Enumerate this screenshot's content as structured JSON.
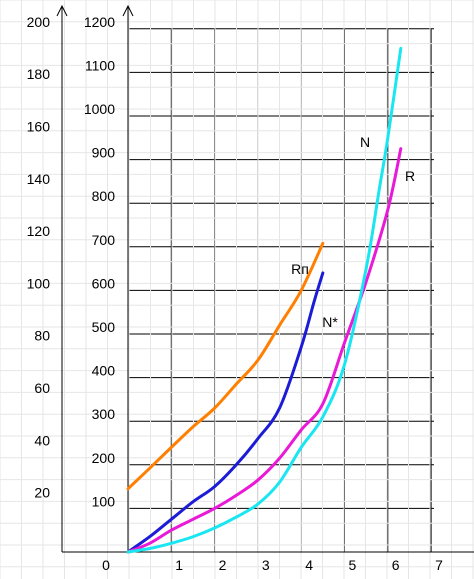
{
  "chart_data": {
    "type": "line",
    "title": "",
    "xlabel": "",
    "ylabel": "",
    "x_ticks": [
      "0",
      "1",
      "2",
      "3",
      "4",
      "5",
      "6",
      "7"
    ],
    "y_left_ticks": [
      "20",
      "40",
      "60",
      "80",
      "100",
      "120",
      "140",
      "160",
      "180",
      "200"
    ],
    "y_inner_ticks": [
      "100",
      "200",
      "300",
      "400",
      "500",
      "600",
      "700",
      "800",
      "900",
      "1000",
      "1100",
      "1200"
    ],
    "xlim": [
      0,
      7
    ],
    "ylim": [
      0,
      1200
    ],
    "grid": true,
    "series": [
      {
        "name": "Rп",
        "color": "#ff7f00",
        "x": [
          0,
          0.5,
          1,
          1.5,
          2,
          2.5,
          3,
          3.5,
          4,
          4.5
        ],
        "y": [
          145,
          192,
          240,
          287,
          330,
          385,
          440,
          520,
          600,
          708
        ]
      },
      {
        "name": "N*",
        "color": "#1c1cd6",
        "x": [
          0,
          0.5,
          1,
          1.5,
          2,
          2.5,
          3,
          3.5,
          4,
          4.3,
          4.5
        ],
        "y": [
          0,
          35,
          75,
          115,
          150,
          200,
          260,
          330,
          470,
          575,
          640
        ]
      },
      {
        "name": "R",
        "color": "#e81ad8",
        "x": [
          0,
          0.5,
          1,
          1.5,
          2,
          2.5,
          3,
          3.5,
          4,
          4.5,
          5,
          5.5,
          6,
          6.3
        ],
        "y": [
          0,
          20,
          50,
          75,
          100,
          130,
          165,
          215,
          280,
          340,
          480,
          620,
          785,
          925
        ]
      },
      {
        "name": "N",
        "color": "#19e6f0",
        "x": [
          0,
          0.5,
          1,
          1.5,
          2,
          2.5,
          3,
          3.5,
          4,
          4.5,
          5,
          5.5,
          5.8,
          6,
          6.3
        ],
        "y": [
          0,
          8,
          20,
          35,
          55,
          80,
          110,
          160,
          240,
          310,
          430,
          650,
          830,
          950,
          1155
        ]
      }
    ]
  }
}
